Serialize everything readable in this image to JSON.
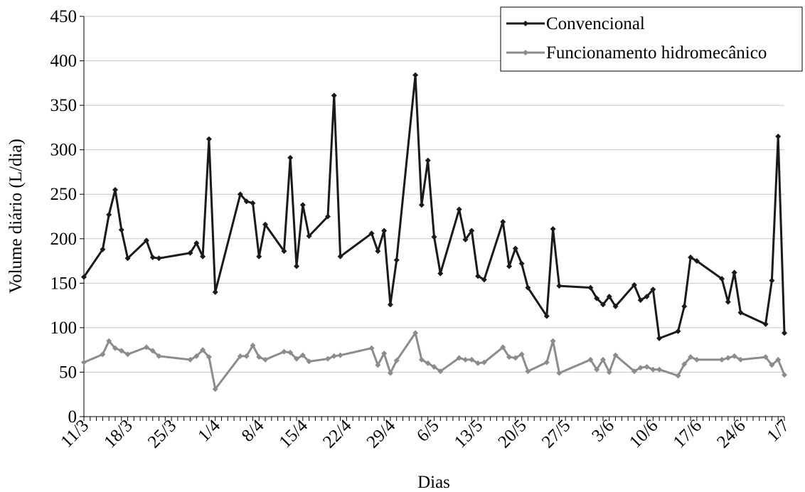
{
  "chart_data": {
    "type": "line",
    "title": "",
    "xlabel": "Dias",
    "ylabel": "Volume diário (L/dia)",
    "ylim": [
      0,
      450
    ],
    "yticks": [
      0,
      50,
      100,
      150,
      200,
      250,
      300,
      350,
      400,
      450
    ],
    "xlim": [
      0,
      112
    ],
    "x_unit": "days from 11/3",
    "x_ticks": [
      {
        "x": 0,
        "label": "11/3"
      },
      {
        "x": 7,
        "label": "18/3"
      },
      {
        "x": 14,
        "label": "25/3"
      },
      {
        "x": 21,
        "label": "1/4"
      },
      {
        "x": 28,
        "label": "8/4"
      },
      {
        "x": 35,
        "label": "15/4"
      },
      {
        "x": 42,
        "label": "22/4"
      },
      {
        "x": 49,
        "label": "29/4"
      },
      {
        "x": 56,
        "label": "6/5"
      },
      {
        "x": 63,
        "label": "13/5"
      },
      {
        "x": 70,
        "label": "20/5"
      },
      {
        "x": 77,
        "label": "27/5"
      },
      {
        "x": 84,
        "label": "3/6"
      },
      {
        "x": 91,
        "label": "10/6"
      },
      {
        "x": 98,
        "label": "17/6"
      },
      {
        "x": 105,
        "label": "24/6"
      },
      {
        "x": 112,
        "label": "1/7"
      }
    ],
    "grid": "horizontal",
    "legend": "top-right",
    "series": [
      {
        "name": "Convencional",
        "color": "#1a1a1a",
        "marker": "diamond",
        "points": [
          [
            0,
            157
          ],
          [
            3,
            188
          ],
          [
            4,
            227
          ],
          [
            5,
            255
          ],
          [
            6,
            210
          ],
          [
            7,
            178
          ],
          [
            10,
            198
          ],
          [
            11,
            179
          ],
          [
            12,
            178
          ],
          [
            17,
            184
          ],
          [
            18,
            195
          ],
          [
            19,
            180
          ],
          [
            20,
            312
          ],
          [
            21,
            140
          ],
          [
            25,
            250
          ],
          [
            26,
            242
          ],
          [
            27,
            240
          ],
          [
            28,
            180
          ],
          [
            29,
            216
          ],
          [
            32,
            186
          ],
          [
            33,
            291
          ],
          [
            34,
            169
          ],
          [
            35,
            238
          ],
          [
            36,
            203
          ],
          [
            39,
            225
          ],
          [
            40,
            361
          ],
          [
            41,
            180
          ],
          [
            46,
            206
          ],
          [
            47,
            186
          ],
          [
            48,
            209
          ],
          [
            49,
            126
          ],
          [
            50,
            176
          ],
          [
            53,
            384
          ],
          [
            54,
            238
          ],
          [
            55,
            288
          ],
          [
            56,
            202
          ],
          [
            57,
            161
          ],
          [
            60,
            233
          ],
          [
            61,
            199
          ],
          [
            62,
            209
          ],
          [
            63,
            158
          ],
          [
            64,
            154
          ],
          [
            67,
            219
          ],
          [
            68,
            169
          ],
          [
            69,
            189
          ],
          [
            70,
            172
          ],
          [
            71,
            145
          ],
          [
            74,
            113
          ],
          [
            75,
            211
          ],
          [
            76,
            147
          ],
          [
            81,
            145
          ],
          [
            82,
            133
          ],
          [
            83,
            126
          ],
          [
            84,
            135
          ],
          [
            85,
            124
          ],
          [
            88,
            148
          ],
          [
            89,
            131
          ],
          [
            90,
            135
          ],
          [
            91,
            143
          ],
          [
            92,
            88
          ],
          [
            95,
            96
          ],
          [
            96,
            124
          ],
          [
            97,
            179
          ],
          [
            98,
            175
          ],
          [
            102,
            155
          ],
          [
            103,
            129
          ],
          [
            104,
            162
          ],
          [
            105,
            117
          ],
          [
            109,
            104
          ],
          [
            110,
            153
          ],
          [
            111,
            315
          ],
          [
            112,
            94
          ]
        ]
      },
      {
        "name": "Funcionamento hidromecânico",
        "color": "#8c8c8c",
        "marker": "diamond",
        "points": [
          [
            0,
            61
          ],
          [
            3,
            70
          ],
          [
            4,
            85
          ],
          [
            5,
            77
          ],
          [
            6,
            74
          ],
          [
            7,
            70
          ],
          [
            10,
            78
          ],
          [
            11,
            74
          ],
          [
            12,
            68
          ],
          [
            17,
            64
          ],
          [
            18,
            68
          ],
          [
            19,
            75
          ],
          [
            20,
            67
          ],
          [
            21,
            31
          ],
          [
            25,
            68
          ],
          [
            26,
            68
          ],
          [
            27,
            80
          ],
          [
            28,
            67
          ],
          [
            29,
            64
          ],
          [
            32,
            73
          ],
          [
            33,
            72
          ],
          [
            34,
            65
          ],
          [
            35,
            69
          ],
          [
            36,
            62
          ],
          [
            39,
            65
          ],
          [
            40,
            68
          ],
          [
            41,
            69
          ],
          [
            46,
            77
          ],
          [
            47,
            58
          ],
          [
            48,
            71
          ],
          [
            49,
            49
          ],
          [
            50,
            63
          ],
          [
            53,
            94
          ],
          [
            54,
            64
          ],
          [
            55,
            60
          ],
          [
            56,
            56
          ],
          [
            57,
            51
          ],
          [
            60,
            66
          ],
          [
            61,
            64
          ],
          [
            62,
            64
          ],
          [
            63,
            60
          ],
          [
            64,
            61
          ],
          [
            67,
            78
          ],
          [
            68,
            67
          ],
          [
            69,
            66
          ],
          [
            70,
            70
          ],
          [
            71,
            51
          ],
          [
            74,
            61
          ],
          [
            75,
            85
          ],
          [
            76,
            49
          ],
          [
            81,
            64
          ],
          [
            82,
            53
          ],
          [
            83,
            64
          ],
          [
            84,
            50
          ],
          [
            85,
            69
          ],
          [
            88,
            51
          ],
          [
            89,
            55
          ],
          [
            90,
            56
          ],
          [
            91,
            53
          ],
          [
            92,
            53
          ],
          [
            95,
            46
          ],
          [
            96,
            59
          ],
          [
            97,
            67
          ],
          [
            98,
            64
          ],
          [
            102,
            64
          ],
          [
            103,
            66
          ],
          [
            104,
            68
          ],
          [
            105,
            64
          ],
          [
            109,
            67
          ],
          [
            110,
            58
          ],
          [
            111,
            64
          ],
          [
            112,
            47
          ]
        ]
      }
    ]
  }
}
